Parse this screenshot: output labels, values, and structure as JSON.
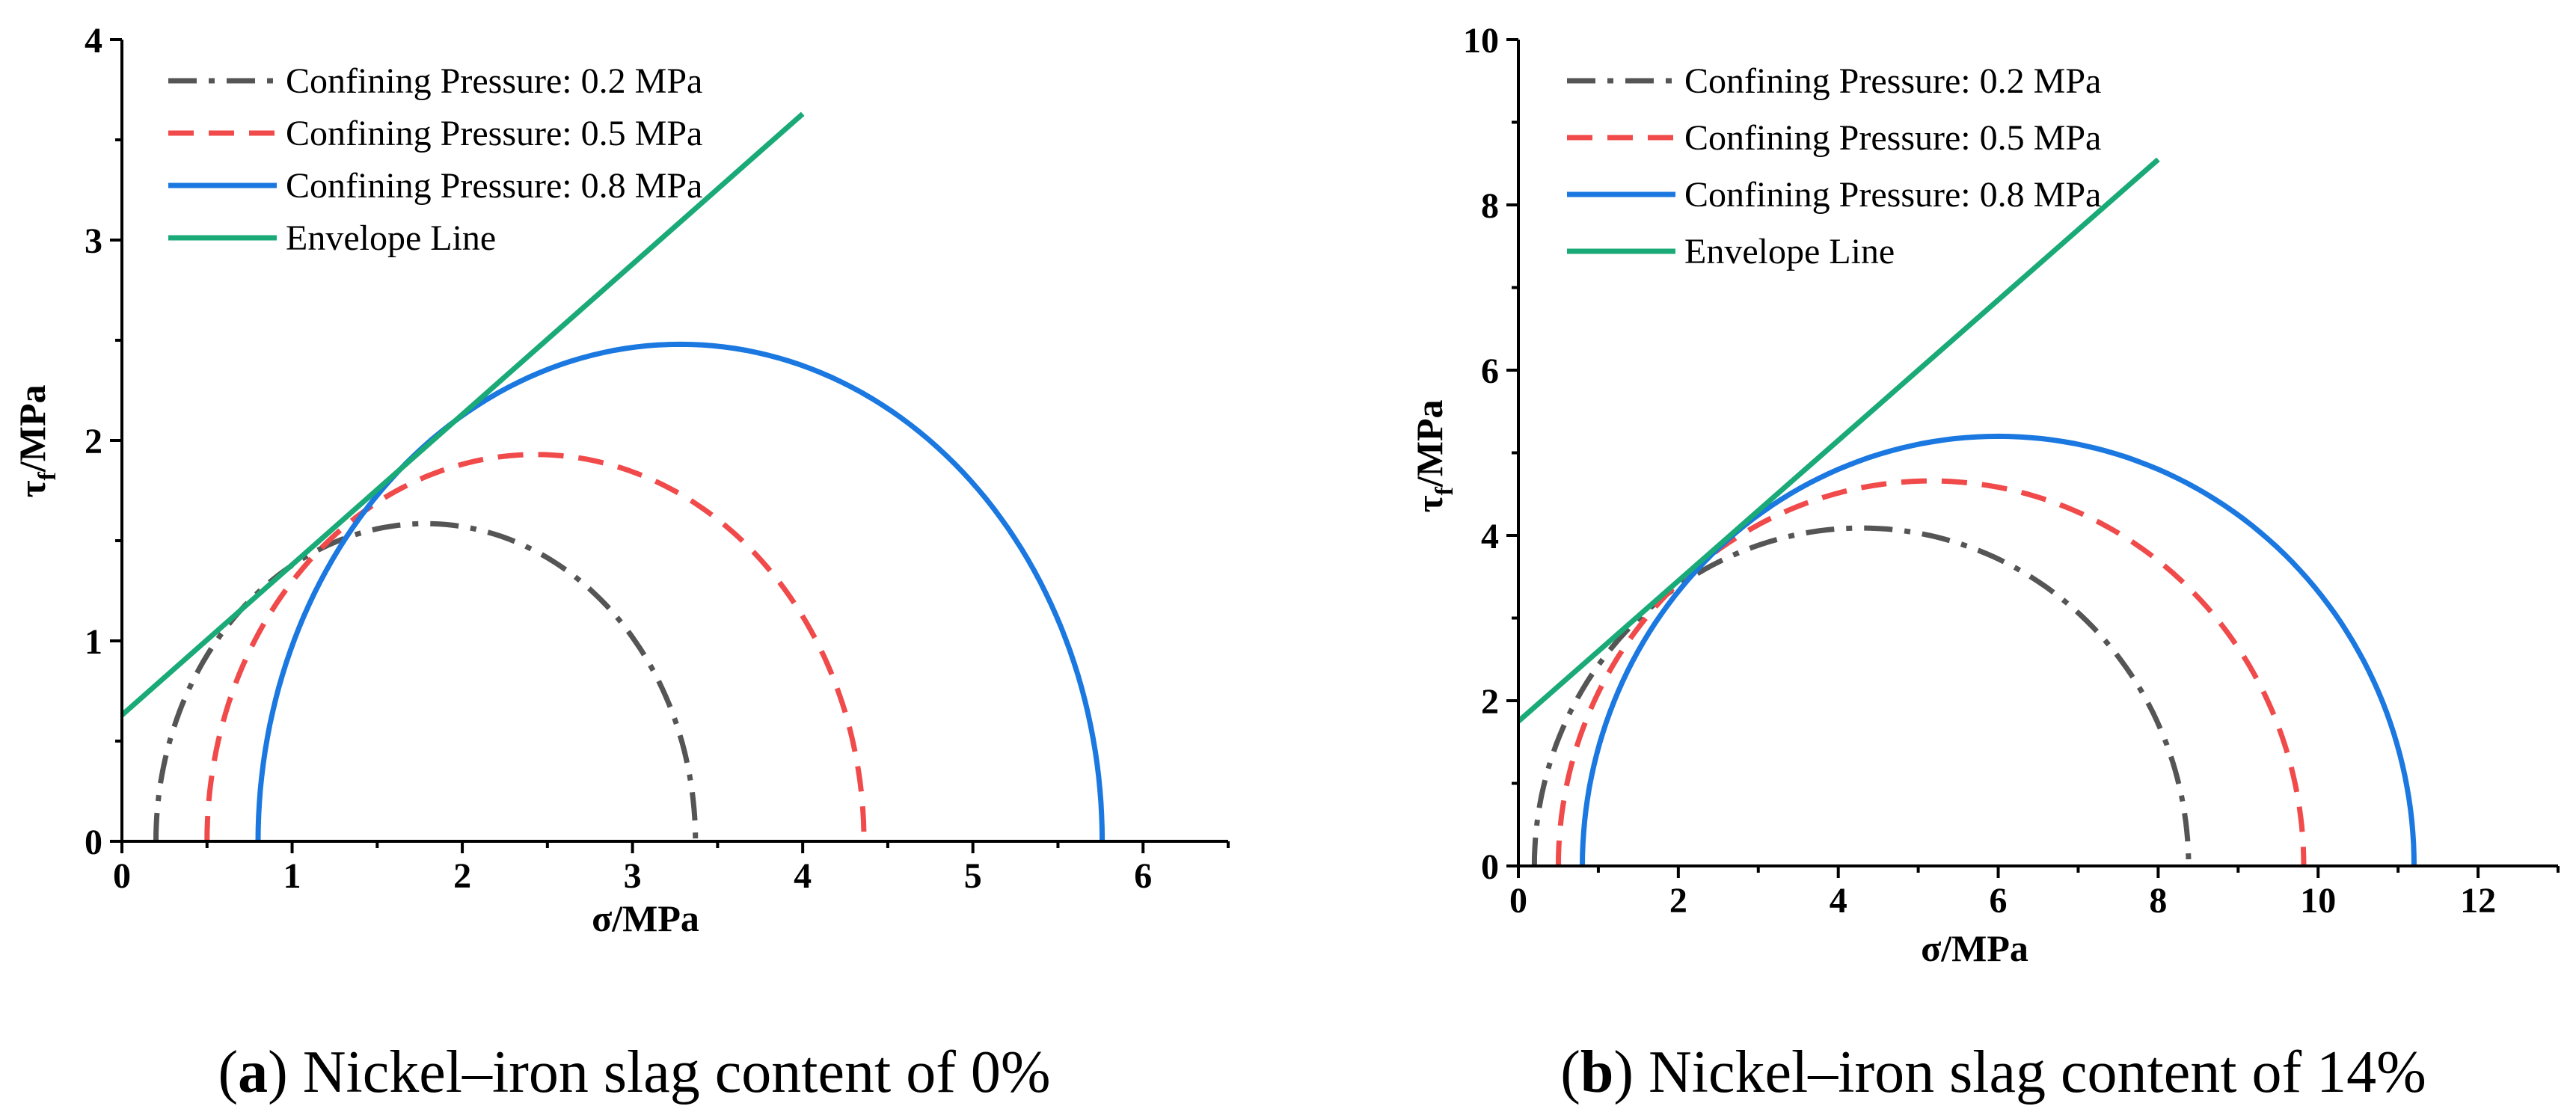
{
  "chart_data": [
    {
      "type": "line",
      "panel_letter": "a",
      "caption": "Nickel–iron slag content of 0%",
      "xlabel": "σ/MPa",
      "ylabel_main": "τ",
      "ylabel_sub": "f",
      "ylabel_rest": "/MPa",
      "xlim": [
        0,
        6.5
      ],
      "ylim": [
        0,
        4
      ],
      "xticks": [
        0,
        1,
        2,
        3,
        4,
        5,
        6
      ],
      "yticks": [
        0,
        1,
        2,
        3,
        4
      ],
      "series": [
        {
          "name": "Confining Pressure: 0.2 MPa",
          "kind": "circle",
          "sigma3": 0.2,
          "sigma1": 3.37,
          "color": "#555555",
          "style": "dashdot"
        },
        {
          "name": "Confining Pressure: 0.5 MPa",
          "kind": "circle",
          "sigma3": 0.5,
          "sigma1": 4.36,
          "color": "#f04a4a",
          "style": "dashed"
        },
        {
          "name": "Confining Pressure: 0.8 MPa",
          "kind": "circle",
          "sigma3": 0.8,
          "sigma1": 5.76,
          "color": "#1a78e0",
          "style": "solid"
        },
        {
          "name": "Envelope Line",
          "kind": "line",
          "x": [
            0,
            4.0
          ],
          "y": [
            0.63,
            3.63
          ],
          "color": "#1aaa78",
          "style": "solid"
        }
      ]
    },
    {
      "type": "line",
      "panel_letter": "b",
      "caption": "Nickel–iron slag content of 14%",
      "xlabel": "σ/MPa",
      "ylabel_main": "τ",
      "ylabel_sub": "f",
      "ylabel_rest": "/MPa",
      "xlim": [
        0,
        13
      ],
      "ylim": [
        0,
        10
      ],
      "xticks": [
        0,
        2,
        4,
        6,
        8,
        10,
        12
      ],
      "yticks": [
        0,
        2,
        4,
        6,
        8,
        10
      ],
      "series": [
        {
          "name": "Confining Pressure: 0.2 MPa",
          "kind": "circle",
          "sigma3": 0.2,
          "sigma1": 8.38,
          "color": "#555555",
          "style": "dashdot"
        },
        {
          "name": "Confining Pressure: 0.5 MPa",
          "kind": "circle",
          "sigma3": 0.5,
          "sigma1": 9.82,
          "color": "#f04a4a",
          "style": "dashed"
        },
        {
          "name": "Confining Pressure: 0.8 MPa",
          "kind": "circle",
          "sigma3": 0.8,
          "sigma1": 11.2,
          "color": "#1a78e0",
          "style": "solid"
        },
        {
          "name": "Envelope Line",
          "kind": "line",
          "x": [
            0,
            8.0
          ],
          "y": [
            1.75,
            8.55
          ],
          "color": "#1aaa78",
          "style": "solid"
        }
      ]
    }
  ]
}
